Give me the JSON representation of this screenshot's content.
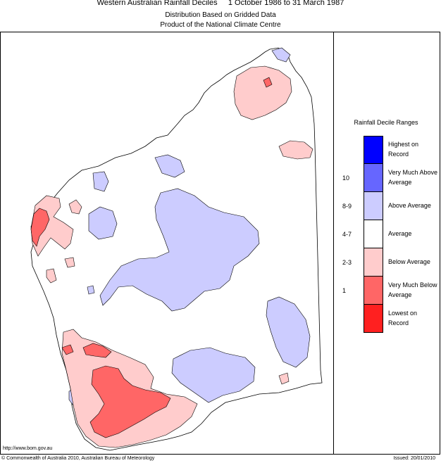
{
  "header": {
    "title": "Western Australian Rainfall Deciles     1 October 1986 to 31 March 1987",
    "subtitle1": "Distribution Based on Gridded Data",
    "subtitle2": "Product of the National Climate Centre"
  },
  "legend": {
    "title": "Rainfall Decile Ranges",
    "items": [
      {
        "label": "Highest on Record",
        "value": "",
        "color": "#0000ff"
      },
      {
        "label": "Very Much Above Average",
        "value": "10",
        "color": "#6666ff"
      },
      {
        "label": "Above Average",
        "value": "8-9",
        "color": "#ccccff"
      },
      {
        "label": "Average",
        "value": "4-7",
        "color": "#ffffff"
      },
      {
        "label": "Below Average",
        "value": "2-3",
        "color": "#ffcccc"
      },
      {
        "label": "Very Much Below Average",
        "value": "1",
        "color": "#ff6666"
      },
      {
        "label": "Lowest on Record",
        "value": "",
        "color": "#ff2020"
      }
    ]
  },
  "footer": {
    "url": "http://www.bom.gov.au",
    "copyright": "© Commonwealth of Australia 2010, Australian Bureau of Meteorology",
    "issued": "Issued: 20/01/2010"
  }
}
